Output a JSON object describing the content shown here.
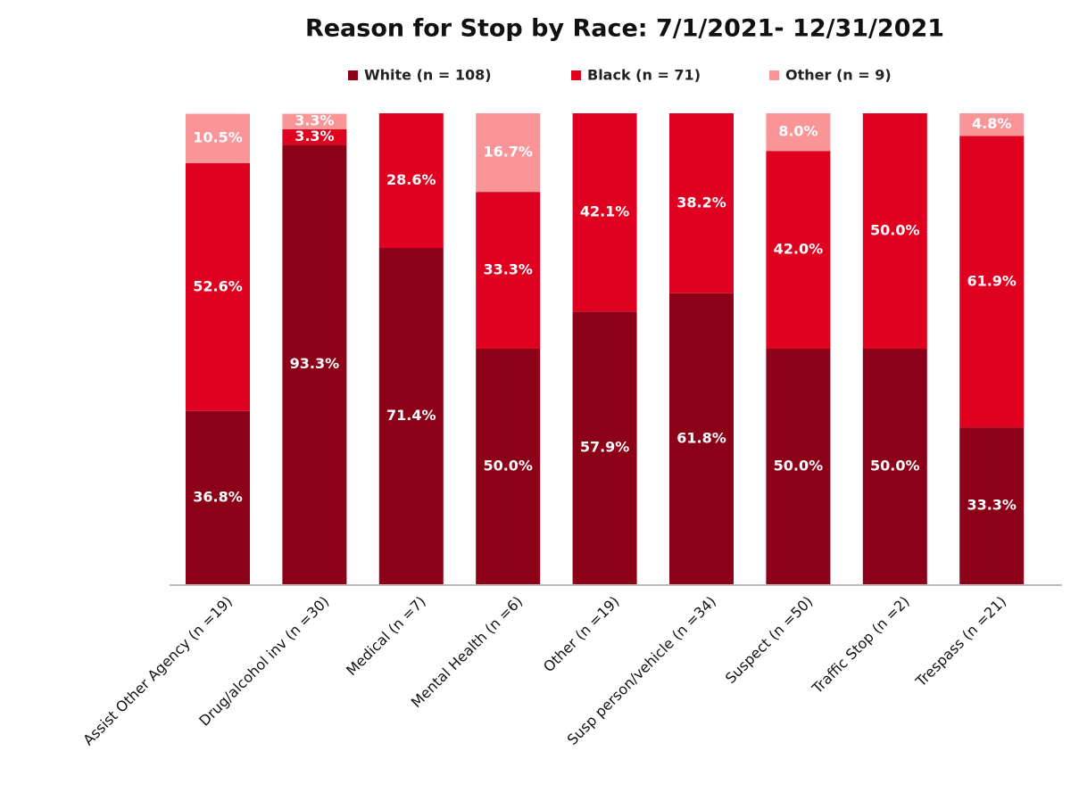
{
  "chart_data": {
    "type": "stacked_bar_100",
    "title": "Reason for Stop by Race: 7/1/2021- 12/31/2021",
    "categories": [
      "Assist Other Agency (n =19)",
      "Drug/alcohol inv (n =30)",
      "Medical (n =7)",
      "Mental Health (n =6)",
      "Other (n =19)",
      "Susp person/vehicle (n =34)",
      "Suspect (n =50)",
      "Traffic Stop (n =2)",
      "Trespass (n =21)"
    ],
    "series": [
      {
        "name": "White (n = 108)",
        "color": "#8c0018",
        "values": [
          36.8,
          93.3,
          71.4,
          50.0,
          57.9,
          61.8,
          50.0,
          50.0,
          33.3
        ],
        "value_labels": [
          "36.8%",
          "93.3%",
          "71.4%",
          "50.0%",
          "57.9%",
          "61.8%",
          "50.0%",
          "50.0%",
          "33.3%"
        ]
      },
      {
        "name": "Black (n = 71)",
        "color": "#e00020",
        "values": [
          52.6,
          3.3,
          28.6,
          33.3,
          42.1,
          38.2,
          42.0,
          50.0,
          61.9
        ],
        "value_labels": [
          "52.6%",
          "3.3%",
          "28.6%",
          "33.3%",
          "42.1%",
          "38.2%",
          "42.0%",
          "50.0%",
          "61.9%"
        ]
      },
      {
        "name": "Other (n = 9)",
        "color": "#f99497",
        "values": [
          10.5,
          3.3,
          0,
          16.7,
          0,
          0,
          8.0,
          0,
          4.8
        ],
        "value_labels": [
          "10.5%",
          "3.3%",
          null,
          "16.7%",
          null,
          null,
          "8.0%",
          null,
          "4.8%"
        ]
      }
    ],
    "ylim": [
      0,
      100
    ],
    "legend": "top"
  }
}
